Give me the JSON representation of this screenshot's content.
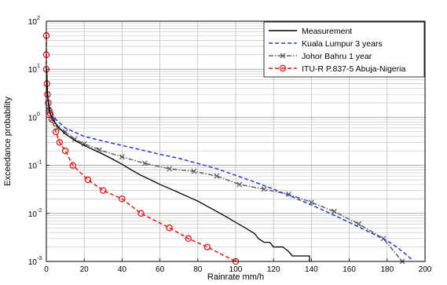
{
  "chart_data": {
    "type": "line",
    "xlabel": "Rainrate mm/h",
    "ylabel": "Exceedance probability",
    "xlim": [
      0,
      200
    ],
    "ylim": [
      0.001,
      100
    ],
    "yscale": "log",
    "grid": true,
    "legend_position": "top-right",
    "x_ticks": [
      "0",
      "20",
      "40",
      "60",
      "80",
      "100",
      "120",
      "140",
      "160",
      "180",
      "200"
    ],
    "y_ticks": [
      {
        "base": "10",
        "exp": "-3",
        "value": 0.001
      },
      {
        "base": "10",
        "exp": "-2",
        "value": 0.01
      },
      {
        "base": "10",
        "exp": "-1",
        "value": 0.1
      },
      {
        "base": "10",
        "exp": "0",
        "value": 1
      },
      {
        "base": "10",
        "exp": "1",
        "value": 10
      },
      {
        "base": "10",
        "exp": "2",
        "value": 100
      }
    ],
    "series": [
      {
        "name": "Measurement",
        "color": "#000000",
        "dash": "solid",
        "marker": "none",
        "points": [
          [
            0.2,
            10
          ],
          [
            0.5,
            4
          ],
          [
            1,
            2
          ],
          [
            2,
            1.2
          ],
          [
            4,
            0.85
          ],
          [
            6,
            0.65
          ],
          [
            10,
            0.45
          ],
          [
            15,
            0.33
          ],
          [
            20,
            0.26
          ],
          [
            25,
            0.21
          ],
          [
            30,
            0.17
          ],
          [
            35,
            0.135
          ],
          [
            40,
            0.105
          ],
          [
            45,
            0.08
          ],
          [
            50,
            0.062
          ],
          [
            55,
            0.05
          ],
          [
            60,
            0.04
          ],
          [
            65,
            0.033
          ],
          [
            70,
            0.027
          ],
          [
            75,
            0.022
          ],
          [
            80,
            0.018
          ],
          [
            85,
            0.014
          ],
          [
            90,
            0.011
          ],
          [
            95,
            0.0085
          ],
          [
            100,
            0.0065
          ],
          [
            105,
            0.005
          ],
          [
            110,
            0.0038
          ],
          [
            112,
            0.003
          ],
          [
            115,
            0.0025
          ],
          [
            118,
            0.0025
          ],
          [
            120,
            0.002
          ],
          [
            125,
            0.002
          ],
          [
            128,
            0.0016
          ],
          [
            130,
            0.0013
          ],
          [
            135,
            0.0013
          ],
          [
            139,
            0.0013
          ],
          [
            139,
            0.001
          ]
        ]
      },
      {
        "name": "Kuala Lumpur 3 years",
        "color": "#1f3fd6",
        "dash": "dashed",
        "marker": "none",
        "points": [
          [
            0.5,
            3
          ],
          [
            2,
            1.4
          ],
          [
            5,
            0.9
          ],
          [
            10,
            0.6
          ],
          [
            20,
            0.4
          ],
          [
            30,
            0.32
          ],
          [
            40,
            0.26
          ],
          [
            50,
            0.21
          ],
          [
            60,
            0.17
          ],
          [
            70,
            0.14
          ],
          [
            80,
            0.11
          ],
          [
            90,
            0.085
          ],
          [
            100,
            0.062
          ],
          [
            110,
            0.045
          ],
          [
            120,
            0.032
          ],
          [
            130,
            0.022
          ],
          [
            140,
            0.015
          ],
          [
            150,
            0.01
          ],
          [
            160,
            0.0065
          ],
          [
            170,
            0.0042
          ],
          [
            180,
            0.0027
          ],
          [
            185,
            0.002
          ],
          [
            190,
            0.0014
          ],
          [
            193,
            0.0011
          ]
        ]
      },
      {
        "name": "Johor Bahru 1 year",
        "color": "#606060",
        "dash": "dashdot",
        "marker": "x",
        "points": [
          [
            1,
            1.5
          ],
          [
            3,
            0.9
          ],
          [
            6,
            0.6
          ],
          [
            10,
            0.5
          ],
          [
            15,
            0.35
          ],
          [
            20,
            0.28
          ],
          [
            28,
            0.21
          ],
          [
            40,
            0.15
          ],
          [
            52,
            0.11
          ],
          [
            65,
            0.085
          ],
          [
            78,
            0.075
          ],
          [
            90,
            0.06
          ],
          [
            102,
            0.04
          ],
          [
            115,
            0.032
          ],
          [
            128,
            0.025
          ],
          [
            140,
            0.017
          ],
          [
            152,
            0.011
          ],
          [
            165,
            0.006
          ],
          [
            178,
            0.003
          ],
          [
            188,
            0.001
          ]
        ]
      },
      {
        "name": "ITU-R P.837-5 Abuja-Nigeria",
        "color": "#e11b1b",
        "dash": "dashed",
        "marker": "o",
        "points": [
          [
            0,
            50
          ],
          [
            0,
            20
          ],
          [
            0,
            10
          ],
          [
            0.3,
            5
          ],
          [
            0.6,
            3
          ],
          [
            1,
            2
          ],
          [
            1.5,
            1.4
          ],
          [
            2,
            1.2
          ],
          [
            3,
            0.9
          ],
          [
            5,
            0.5
          ],
          [
            7,
            0.3
          ],
          [
            10,
            0.2
          ],
          [
            14,
            0.1
          ],
          [
            22,
            0.05
          ],
          [
            30,
            0.03
          ],
          [
            40,
            0.02
          ],
          [
            50,
            0.01
          ],
          [
            65,
            0.005
          ],
          [
            75,
            0.003
          ],
          [
            85,
            0.002
          ],
          [
            100,
            0.001
          ]
        ]
      }
    ]
  }
}
